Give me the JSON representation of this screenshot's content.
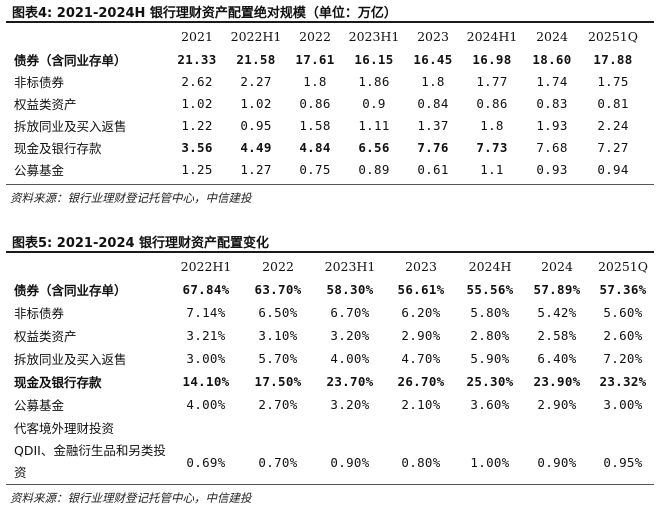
{
  "table4": {
    "title": "图表4:   2021-2024H 银行理财资产配置绝对规模（单位：万亿）",
    "headers": [
      "",
      "2021",
      "2022H1",
      "2022",
      "2023H1",
      "2023",
      "2024H1",
      "2024",
      "20251Q"
    ],
    "rows": [
      {
        "label": "债券（含同业存单）",
        "bold": true,
        "values": [
          "21.33",
          "21.58",
          "17.61",
          "16.15",
          "16.45",
          "16.98",
          "18.60",
          "17.88"
        ]
      },
      {
        "label": "非标债券",
        "bold": false,
        "values": [
          "2.62",
          "2.27",
          "1.8",
          "1.86",
          "1.8",
          "1.77",
          "1.74",
          "1.75"
        ]
      },
      {
        "label": "权益类资产",
        "bold": false,
        "values": [
          "1.02",
          "1.02",
          "0.86",
          "0.9",
          "0.84",
          "0.86",
          "0.83",
          "0.81"
        ]
      },
      {
        "label": "拆放同业及买入返售",
        "bold": false,
        "values": [
          "1.22",
          "0.95",
          "1.58",
          "1.11",
          "1.37",
          "1.8",
          "1.93",
          "2.24"
        ]
      },
      {
        "label": "现金及银行存款",
        "bold": false,
        "boldValues": [
          0,
          1,
          2,
          3,
          4,
          5
        ],
        "values": [
          "3.56",
          "4.49",
          "4.84",
          "6.56",
          "7.76",
          "7.73",
          "7.68",
          "7.27"
        ]
      },
      {
        "label": "公募基金",
        "bold": false,
        "values": [
          "1.25",
          "1.27",
          "0.75",
          "0.89",
          "0.61",
          "1.1",
          "0.93",
          "0.94"
        ]
      }
    ],
    "source": "资料来源：银行业理财登记托管中心，中信建投"
  },
  "table5": {
    "title": "图表5:   2021-2024 银行理财资产配置变化",
    "headers": [
      "",
      "2022H1",
      "2022",
      "2023H1",
      "2023",
      "2024H",
      "2024",
      "20251Q"
    ],
    "rows": [
      {
        "label": "债券（含同业存单）",
        "bold": true,
        "values": [
          "67.84%",
          "63.70%",
          "58.30%",
          "56.61%",
          "55.56%",
          "57.89%",
          "57.36%"
        ]
      },
      {
        "label": "非标债券",
        "bold": false,
        "values": [
          "7.14%",
          "6.50%",
          "6.70%",
          "6.20%",
          "5.80%",
          "5.42%",
          "5.60%"
        ]
      },
      {
        "label": "权益类资产",
        "bold": false,
        "values": [
          "3.21%",
          "3.10%",
          "3.20%",
          "2.90%",
          "2.80%",
          "2.58%",
          "2.60%"
        ]
      },
      {
        "label": "拆放同业及买入返售",
        "bold": false,
        "values": [
          "3.00%",
          "5.70%",
          "4.00%",
          "4.70%",
          "5.90%",
          "6.40%",
          "7.20%"
        ]
      },
      {
        "label": "现金及银行存款",
        "bold": true,
        "values": [
          "14.10%",
          "17.50%",
          "23.70%",
          "26.70%",
          "25.30%",
          "23.90%",
          "23.32%"
        ]
      },
      {
        "label": "公募基金",
        "bold": false,
        "values": [
          "4.00%",
          "2.70%",
          "3.20%",
          "2.10%",
          "3.60%",
          "2.90%",
          "3.00%"
        ]
      },
      {
        "label": "代客境外理财投资",
        "bold": false,
        "values": [
          "",
          "",
          "",
          "",
          "",
          "",
          ""
        ]
      },
      {
        "label": "QDII、金融衍生品和另类投资",
        "bold": false,
        "values": [
          "0.69%",
          "0.70%",
          "0.90%",
          "0.80%",
          "1.00%",
          "0.90%",
          "0.95%"
        ]
      }
    ],
    "source": "资料来源：银行业理财登记托管中心，中信建投"
  }
}
